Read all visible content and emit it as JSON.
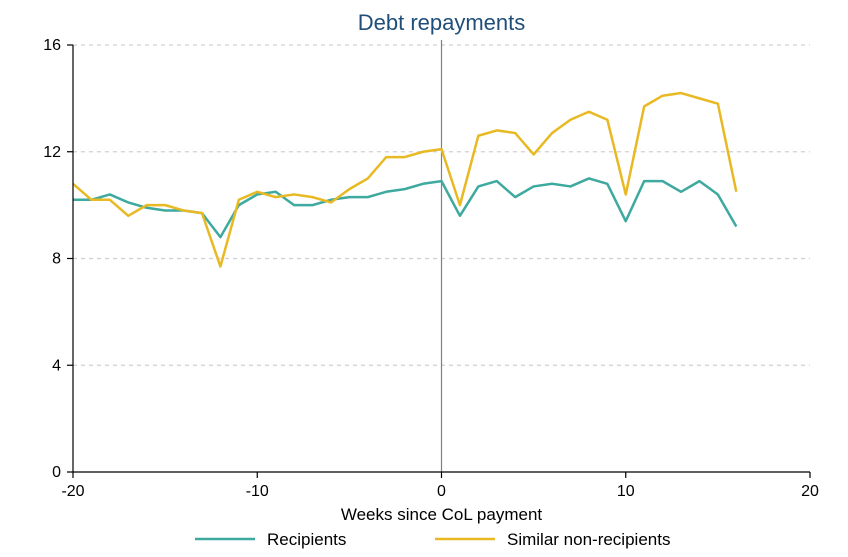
{
  "chart": {
    "type": "line",
    "title": "Debt repayments",
    "title_fontsize": 22,
    "title_color": "#1f4e79",
    "xlabel": "Weeks since CoL payment",
    "label_fontsize": 17,
    "background_color": "#ffffff",
    "plot_border_color": "#000000",
    "grid_color": "#d0d0d0",
    "axis_color": "#000000",
    "vline_x": 0,
    "vline_color": "#808080",
    "xlim": [
      -20,
      20
    ],
    "ylim": [
      0,
      16
    ],
    "xticks": [
      -20,
      -10,
      0,
      10,
      20
    ],
    "yticks": [
      0,
      4,
      8,
      12,
      16
    ],
    "line_width": 2.5,
    "series": [
      {
        "name": "Recipients",
        "color": "#3ea99f",
        "x": [
          -20,
          -19,
          -18,
          -17,
          -16,
          -15,
          -14,
          -13,
          -12,
          -11,
          -10,
          -9,
          -8,
          -7,
          -6,
          -5,
          -4,
          -3,
          -2,
          -1,
          0,
          1,
          2,
          3,
          4,
          5,
          6,
          7,
          8,
          9,
          10,
          11,
          12,
          13,
          14,
          15,
          16
        ],
        "y": [
          10.2,
          10.2,
          10.4,
          10.1,
          9.9,
          9.8,
          9.8,
          9.7,
          8.8,
          10.0,
          10.4,
          10.5,
          10.0,
          10.0,
          10.2,
          10.3,
          10.3,
          10.5,
          10.6,
          10.8,
          10.9,
          9.6,
          10.7,
          10.9,
          10.3,
          10.7,
          10.8,
          10.7,
          11.0,
          10.8,
          9.4,
          10.9,
          10.9,
          10.5,
          10.9,
          10.4,
          9.2
        ]
      },
      {
        "name": "Similar non-recipients",
        "color": "#e8b923",
        "x": [
          -20,
          -19,
          -18,
          -17,
          -16,
          -15,
          -14,
          -13,
          -12,
          -11,
          -10,
          -9,
          -8,
          -7,
          -6,
          -5,
          -4,
          -3,
          -2,
          -1,
          0,
          1,
          2,
          3,
          4,
          5,
          6,
          7,
          8,
          9,
          10,
          11,
          12,
          13,
          14,
          15,
          16
        ],
        "y": [
          10.8,
          10.2,
          10.2,
          9.6,
          10.0,
          10.0,
          9.8,
          9.7,
          7.7,
          10.2,
          10.5,
          10.3,
          10.4,
          10.3,
          10.1,
          10.6,
          11.0,
          11.8,
          11.8,
          12.0,
          12.1,
          10.0,
          12.6,
          12.8,
          12.7,
          11.9,
          12.7,
          13.2,
          13.5,
          13.2,
          10.4,
          13.7,
          14.1,
          14.2,
          14.0,
          13.8,
          10.5
        ]
      }
    ],
    "legend": {
      "items": [
        "Recipients",
        "Similar non-recipients"
      ]
    }
  }
}
